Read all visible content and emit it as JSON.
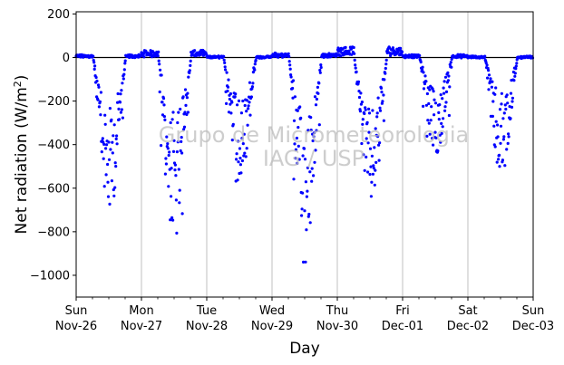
{
  "chart_data": {
    "type": "scatter",
    "xlabel": "Day",
    "ylabel": "Net radiation (W/m",
    "ylabel_sup": "2",
    "ylabel_close": ")",
    "ylim": [
      -1100,
      210
    ],
    "xlim": [
      0,
      7
    ],
    "y_ticks": [
      200,
      0,
      -200,
      -400,
      -600,
      -800,
      -1000
    ],
    "x_ticks": [
      {
        "day": "Sun",
        "date": "Nov-26"
      },
      {
        "day": "Mon",
        "date": "Nov-27"
      },
      {
        "day": "Tue",
        "date": "Nov-28"
      },
      {
        "day": "Wed",
        "date": "Nov-29"
      },
      {
        "day": "Thu",
        "date": "Nov-30"
      },
      {
        "day": "Fri",
        "date": "Dec-01"
      },
      {
        "day": "Sat",
        "date": "Dec-02"
      },
      {
        "day": "Sun",
        "date": "Dec-03"
      }
    ],
    "grid": "vertical",
    "reference_line_y": 0,
    "marker_color": "#0000ff",
    "watermark": [
      "Grupo de Micrometeorologia",
      "IAG / USP"
    ],
    "days": [
      {
        "start": 0,
        "night_base": 10,
        "day_amp": 230,
        "spread": 500
      },
      {
        "start": 1,
        "night_base": 25,
        "day_amp": 250,
        "spread": 620
      },
      {
        "start": 2,
        "night_base": 5,
        "day_amp": 180,
        "spread": 420
      },
      {
        "start": 3,
        "night_base": 15,
        "day_amp": 260,
        "spread": 720
      },
      {
        "start": 4,
        "night_base": 40,
        "day_amp": 240,
        "spread": 450
      },
      {
        "start": 5,
        "night_base": 10,
        "day_amp": 150,
        "spread": 300
      },
      {
        "start": 6,
        "night_base": 5,
        "day_amp": 160,
        "spread": 420
      }
    ]
  }
}
